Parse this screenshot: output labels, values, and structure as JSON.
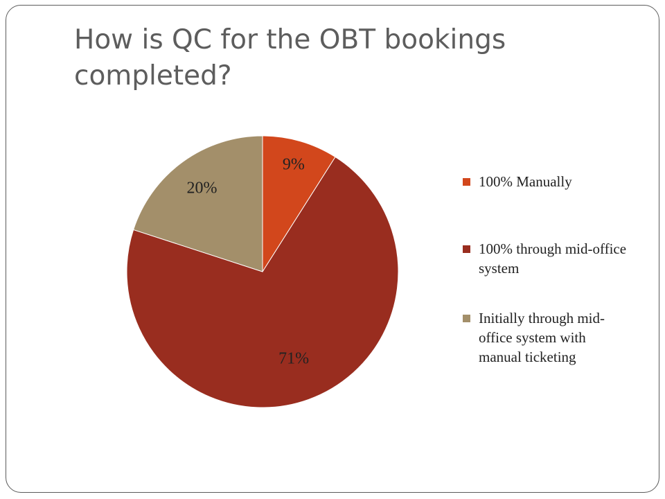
{
  "slide": {
    "title": "How is QC for the OBT bookings completed?"
  },
  "chart_data": {
    "type": "pie",
    "title": "",
    "categories": [
      "100% Manually",
      "100% through mid-office system",
      "Initially through mid-office system with manual ticketing"
    ],
    "values": [
      9,
      71,
      20
    ],
    "labels": [
      "9%",
      "71%",
      "20%"
    ],
    "colors": [
      "#d2471c",
      "#992d1f",
      "#a38f6a"
    ],
    "start": "12 o'clock",
    "direction": "clockwise",
    "legend": "right"
  }
}
